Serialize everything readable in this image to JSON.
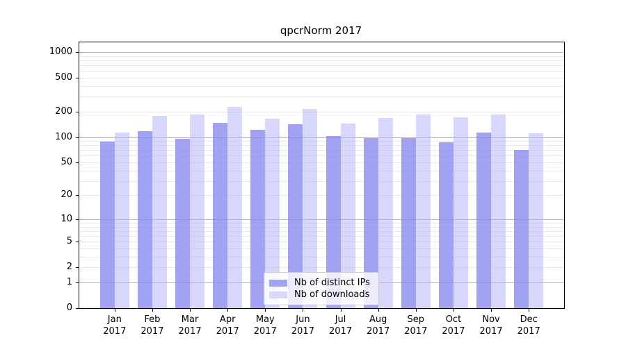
{
  "chart_data": {
    "type": "bar",
    "title": "qpcrNorm 2017",
    "xlabel": "",
    "ylabel": "",
    "year": "2017",
    "categories": [
      "Jan",
      "Feb",
      "Mar",
      "Apr",
      "May",
      "Jun",
      "Jul",
      "Aug",
      "Sep",
      "Oct",
      "Nov",
      "Dec"
    ],
    "series": [
      {
        "name": "Nb of distinct IPs",
        "values": [
          89,
          117,
          95,
          148,
          121,
          142,
          102,
          98,
          97,
          86,
          114,
          71
        ]
      },
      {
        "name": "Nb of downloads",
        "values": [
          113,
          179,
          184,
          227,
          166,
          215,
          144,
          168,
          184,
          171,
          186,
          112
        ]
      }
    ],
    "yscale": "log1p",
    "ylim": [
      0,
      1300
    ],
    "yticks": {
      "values": [
        0,
        1,
        2,
        5,
        10,
        20,
        50,
        100,
        200,
        500,
        1000
      ],
      "labels": [
        "0",
        "1",
        "2",
        "5",
        "10",
        "20",
        "50",
        "100",
        "200",
        "500",
        "1000"
      ]
    },
    "grid": {
      "on": true,
      "major_values": [
        1,
        10,
        100,
        1000
      ],
      "minor_bases": [
        2,
        3,
        4,
        5,
        6,
        7,
        8,
        9
      ],
      "minor_decades": [
        1,
        10,
        100
      ]
    },
    "legend_position": "bottom-center-inside"
  },
  "colors": {
    "bar_ips": "#a3a3f3",
    "bar_ips_fill": "rgba(136,136,240,0.78)",
    "bar_downloads": "#d8d8f8",
    "bar_downloads_fill": "rgba(180,180,248,0.53)",
    "grid_major": "#b3b3b3",
    "grid_minor": "#e9e9e9",
    "axis": "#000000",
    "legend_border": "#cccccc"
  }
}
